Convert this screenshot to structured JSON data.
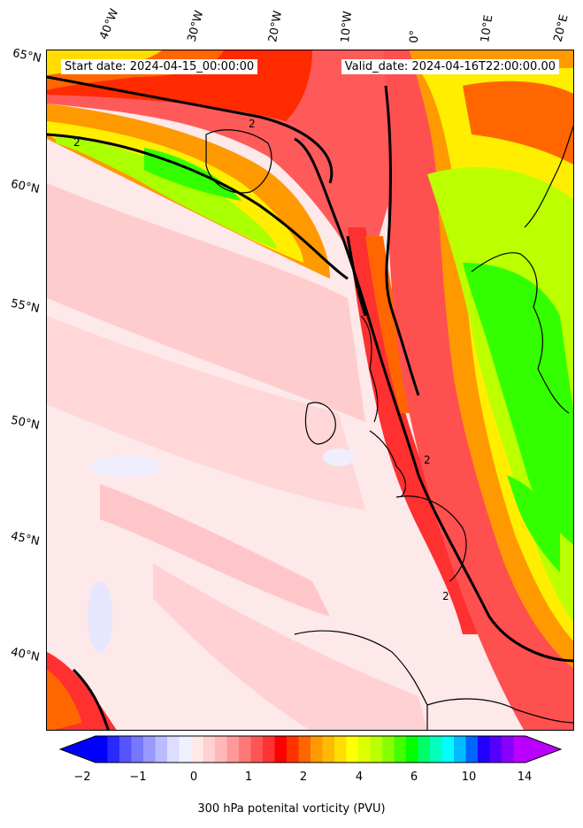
{
  "map": {
    "start_date": "Start date: 2024-04-15_00:00:00",
    "valid_date": "Valid_date: 2024-04-16T22:00:00.00",
    "lon_labels": [
      "40°W",
      "30°W",
      "20°W",
      "10°W",
      "0°",
      "10°E",
      "20°E"
    ],
    "lat_labels": [
      "65°N",
      "60°N",
      "55°N",
      "50°N",
      "45°N",
      "40°N"
    ],
    "contour_label": "2"
  },
  "colorbar": {
    "title": "300 hPa potenital vorticity (PVU)",
    "tick_labels": [
      "−2",
      "−1",
      "0",
      "1",
      "2",
      "4",
      "6",
      "10",
      "14"
    ],
    "colors": [
      "#0000ff",
      "#2a2aff",
      "#5555ff",
      "#7777ff",
      "#9999ff",
      "#bbbbff",
      "#ddddff",
      "#f0f0ff",
      "#ffe8e8",
      "#ffd0d0",
      "#ffb8b8",
      "#ff9898",
      "#ff7878",
      "#ff5555",
      "#ff3333",
      "#ff0000",
      "#ff3300",
      "#ff6600",
      "#ff9900",
      "#ffbb00",
      "#ffdd00",
      "#ffff00",
      "#ddff00",
      "#bbff00",
      "#88ff00",
      "#44ff00",
      "#00ff00",
      "#00ff66",
      "#00ffbb",
      "#00ffff",
      "#00bbff",
      "#0066ff",
      "#2200ff",
      "#5500ff",
      "#8800ff",
      "#bb00ff"
    ],
    "extend_left_color": "#0000ff",
    "extend_right_color": "#bb00ff"
  }
}
